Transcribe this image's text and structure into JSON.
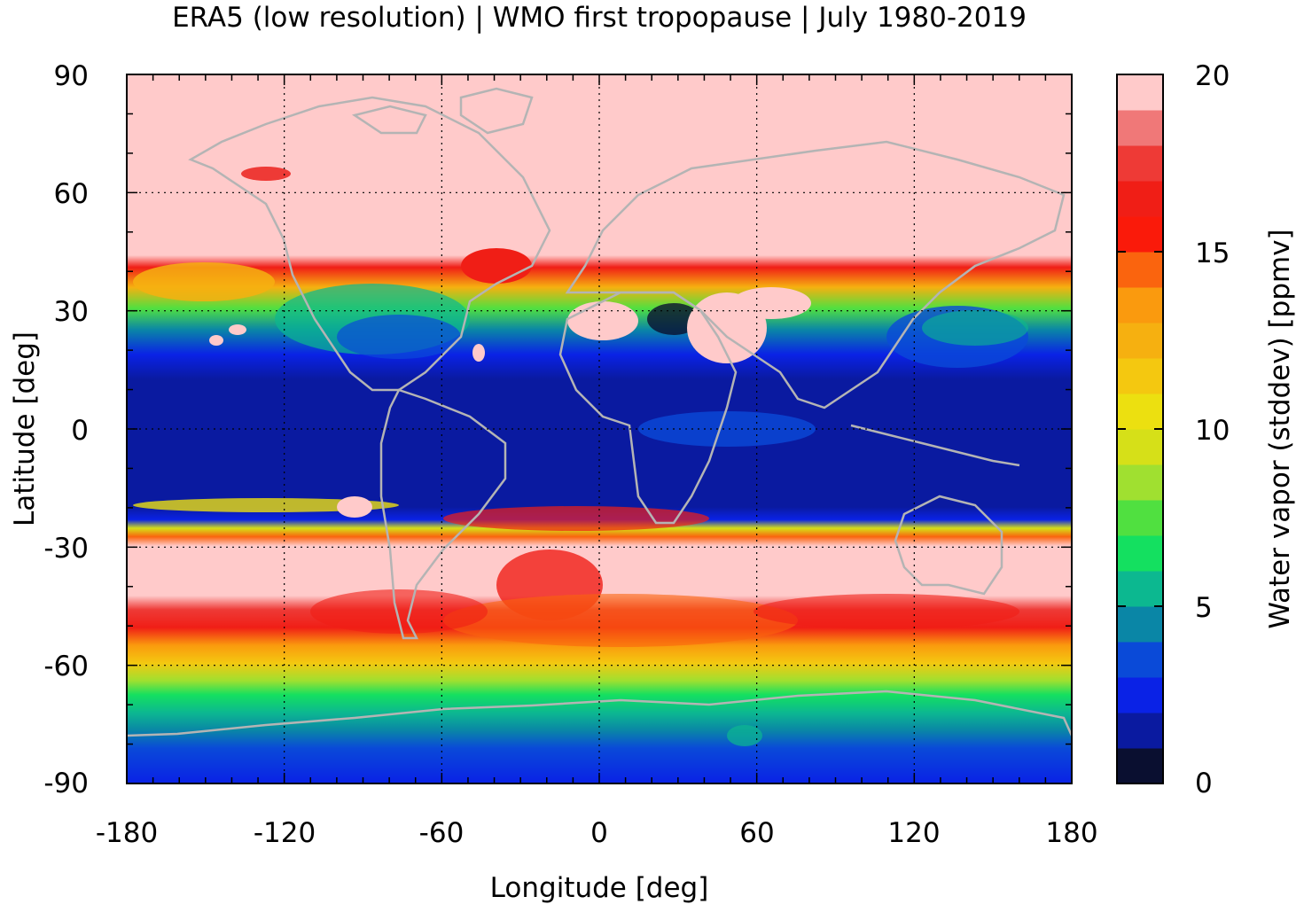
{
  "title": "ERA5 (low resolution) | WMO first tropopause | July 1980-2019",
  "chart_data": {
    "type": "heatmap",
    "xlabel": "Longitude [deg]",
    "ylabel": "Latitude [deg]",
    "colorbar_label": "Water vapor (stddev) [ppmv]",
    "xlim": [
      -180,
      180
    ],
    "ylim": [
      -90,
      90
    ],
    "xticks": [
      "-180",
      "-120",
      "-60",
      "0",
      "60",
      "120",
      "180"
    ],
    "yticks": [
      "90",
      "60",
      "30",
      "0",
      "-30",
      "-60",
      "-90"
    ],
    "colorbar_ticks": [
      "20",
      "15",
      "10",
      "5",
      "0"
    ],
    "colorbar_range": [
      0,
      20
    ],
    "grid": true,
    "colors": [
      "#0a0f30",
      "#0a1aa0",
      "#0a22e6",
      "#0a4ad8",
      "#0a86a6",
      "#0cb890",
      "#14e060",
      "#50e040",
      "#a0e030",
      "#d6e018",
      "#ece010",
      "#f4c810",
      "#f6b010",
      "#fa9a0e",
      "#fa640e",
      "#fa1a0a",
      "#f01e16",
      "#ee3a36",
      "#f07878",
      "#ffcaca"
    ],
    "zonal_profile": [
      {
        "lat": -90,
        "value": 3
      },
      {
        "lat": -80,
        "value": 3.5
      },
      {
        "lat": -70,
        "value": 7
      },
      {
        "lat": -60,
        "value": 11
      },
      {
        "lat": -50,
        "value": 14
      },
      {
        "lat": -45,
        "value": 17
      },
      {
        "lat": -40,
        "value": 20
      },
      {
        "lat": -25,
        "value": 20
      },
      {
        "lat": -22,
        "value": 14
      },
      {
        "lat": -15,
        "value": 2
      },
      {
        "lat": 0,
        "value": 1.5
      },
      {
        "lat": 15,
        "value": 2.5
      },
      {
        "lat": 25,
        "value": 7
      },
      {
        "lat": 33,
        "value": 13
      },
      {
        "lat": 38,
        "value": 17
      },
      {
        "lat": 42,
        "value": 20
      },
      {
        "lat": 90,
        "value": 20
      }
    ]
  }
}
